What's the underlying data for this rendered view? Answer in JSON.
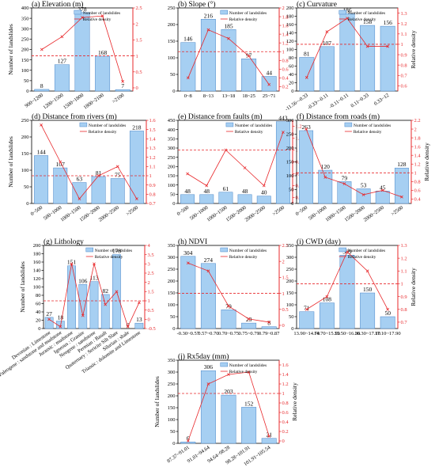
{
  "colors": {
    "bar": "#a6cff2",
    "bar_stroke": "#4a86c8",
    "line": "#e8282b",
    "axis": "#000000"
  },
  "legend": {
    "bars": "Number of landslides",
    "line": "Relative density"
  },
  "axes": {
    "left_label": "Number of landslides",
    "right_label": "Relative density"
  },
  "chart_data": [
    {
      "type": "bar",
      "title": "(a) Elevation (m)",
      "categories": [
        "900~1200",
        "1200~1500",
        "1500~1800",
        "1800~2100",
        ">2100"
      ],
      "series": [
        {
          "name": "Number of landslides",
          "values": [
            8,
            127,
            378,
            168,
            7
          ]
        },
        {
          "name": "Relative density",
          "type": "line",
          "axis": "right",
          "values": [
            1.2,
            1.6,
            2.2,
            2.25,
            0.2
          ]
        }
      ],
      "ylim": [
        0,
        400
      ],
      "yticks": [
        0,
        50,
        100,
        150,
        200,
        250,
        300,
        350,
        400
      ],
      "y2lim": [
        -0.1,
        2.5
      ],
      "y2ticks": [
        0.0,
        0.5,
        1.0,
        1.5,
        2.0,
        2.5
      ],
      "reference": 1.0,
      "show_left_label": true,
      "show_right_label": false
    },
    {
      "type": "bar",
      "title": "(b) Slope (°)",
      "categories": [
        "0~8",
        "8~13",
        "13~18",
        "18~25",
        "25~71"
      ],
      "series": [
        {
          "name": "Number of landslides",
          "values": [
            146,
            216,
            185,
            97,
            44
          ]
        },
        {
          "name": "Relative density",
          "type": "line",
          "axis": "right",
          "values": [
            0.4,
            1.5,
            1.3,
            0.9,
            0.25
          ]
        }
      ],
      "ylim": [
        0,
        250
      ],
      "yticks": [
        0,
        50,
        100,
        150,
        200,
        250
      ],
      "y2lim": [
        0.1,
        2.0
      ],
      "y2ticks": [
        0.2,
        0.4,
        0.6,
        0.8,
        1.0,
        1.2,
        1.4,
        1.6,
        1.8,
        2.0
      ],
      "reference": 1.0,
      "show_left_label": false,
      "show_right_label": false
    },
    {
      "type": "bar",
      "title": "(c) Curvature",
      "categories": [
        "-11.56~-0.33",
        "-0.33~-0.11",
        "-0.11~0.11",
        "0.11~0.33",
        "0.33~12"
      ],
      "series": [
        {
          "name": "Number of landslides",
          "values": [
            81,
            107,
            186,
            158,
            156
          ]
        },
        {
          "name": "Relative density",
          "type": "line",
          "axis": "right",
          "values": [
            0.68,
            1.12,
            1.25,
            0.98,
            0.98
          ]
        }
      ],
      "ylim": [
        0,
        200
      ],
      "yticks": [
        0,
        20,
        40,
        60,
        80,
        100,
        120,
        140,
        160,
        180,
        200
      ],
      "y2lim": [
        0.55,
        1.35
      ],
      "y2ticks": [
        0.6,
        0.7,
        0.8,
        0.9,
        1.0,
        1.1,
        1.2,
        1.3
      ],
      "reference": 1.0,
      "show_left_label": false,
      "show_right_label": true
    },
    {
      "type": "bar",
      "title": "(d) Distance from rivers (m)",
      "categories": [
        "0~500",
        "500~1000",
        "1000~1500",
        "1500~2000",
        "2000~2500",
        ">2500"
      ],
      "series": [
        {
          "name": "Number of landslides",
          "values": [
            144,
            107,
            63,
            81,
            75,
            218
          ]
        },
        {
          "name": "Relative density",
          "type": "line",
          "axis": "right",
          "values": [
            1.55,
            1.15,
            0.75,
            1.0,
            1.1,
            0.75
          ]
        }
      ],
      "ylim": [
        0,
        250
      ],
      "yticks": [
        0,
        50,
        100,
        150,
        200,
        250
      ],
      "y2lim": [
        0.7,
        1.6
      ],
      "y2ticks": [
        0.7,
        0.8,
        0.9,
        1.0,
        1.1,
        1.2,
        1.3,
        1.4,
        1.5,
        1.6
      ],
      "reference": 1.0,
      "show_left_label": true,
      "show_right_label": false
    },
    {
      "type": "bar",
      "title": "(e) Distance from faults (m)",
      "categories": [
        "0~500",
        "500~1000",
        "1000~1500",
        "1500~2000",
        "2000~2500",
        ">2500"
      ],
      "series": [
        {
          "name": "Number of landslides",
          "values": [
            48,
            48,
            61,
            48,
            40,
            443
          ]
        },
        {
          "name": "Relative density",
          "type": "line",
          "axis": "right",
          "values": [
            0.8,
            0.7,
            1.0,
            0.85,
            0.7,
            1.15
          ]
        }
      ],
      "ylim": [
        0,
        450
      ],
      "yticks": [
        0,
        50,
        100,
        150,
        200,
        250,
        300,
        350,
        400,
        450
      ],
      "y2lim": [
        0.55,
        1.25
      ],
      "y2ticks": [
        0.6,
        0.7,
        0.8,
        0.9,
        1.0,
        1.1,
        1.2
      ],
      "reference": 1.0,
      "show_left_label": false,
      "show_right_label": false
    },
    {
      "type": "bar",
      "title": "(f) Distance from roads (m)",
      "categories": [
        "0~500",
        "500~1000",
        "1000~1500",
        "1500~2000",
        "2000~2500",
        ">2500"
      ],
      "series": [
        {
          "name": "Number of landslides",
          "values": [
            263,
            120,
            79,
            53,
            45,
            128
          ]
        },
        {
          "name": "Relative density",
          "type": "line",
          "axis": "right",
          "values": [
            2.0,
            0.9,
            0.75,
            0.5,
            0.6,
            0.45
          ]
        }
      ],
      "ylim": [
        0,
        300
      ],
      "yticks": [
        0,
        50,
        100,
        150,
        200,
        250,
        300
      ],
      "y2lim": [
        0.3,
        2.2
      ],
      "y2ticks": [
        0.4,
        0.6,
        0.8,
        1.0,
        1.2,
        1.4,
        1.6,
        1.8,
        2.0,
        2.2
      ],
      "reference": 1.0,
      "show_left_label": false,
      "show_right_label": true
    },
    {
      "type": "bar",
      "title": "(g) Lithology",
      "categories": [
        "Devonian : Limestone",
        "Paleogene : sandstone and mudstone",
        "Jurassic : mudstone",
        "Igneous : Granite",
        "Neogene : sandstone",
        "Permian : Basalt",
        "Quaternary : Sericite Silt Slate",
        "Silurian : shale",
        "Triassic : dolomite and Limestone"
      ],
      "series": [
        {
          "name": "Number of landslides",
          "values": [
            27,
            18,
            151,
            106,
            113,
            82,
            178,
            0,
            13
          ]
        },
        {
          "name": "Relative density",
          "type": "line",
          "axis": "right",
          "values": [
            0.0,
            -0.4,
            3.0,
            0.2,
            3.0,
            0.8,
            1.5,
            -0.4,
            0.9
          ]
        }
      ],
      "ylim": [
        0,
        200
      ],
      "yticks": [
        0,
        20,
        40,
        60,
        80,
        100,
        120,
        140,
        160,
        180,
        200
      ],
      "y2lim": [
        -0.5,
        4.0
      ],
      "y2ticks": [
        -0.5,
        0.0,
        0.5,
        1.0,
        1.5,
        2.0,
        2.5,
        3.0,
        3.5,
        4.0
      ],
      "reference": 1.0,
      "show_left_label": true,
      "show_right_label": false
    },
    {
      "type": "bar",
      "title": "(h) NDVI",
      "categories": [
        "-0.30~0.57",
        "0.57~0.70",
        "0.70~0.75",
        "0.75~0.79",
        "0.79~0.87"
      ],
      "series": [
        {
          "name": "Number of landslides",
          "values": [
            304,
            274,
            79,
            23,
            8
          ]
        },
        {
          "name": "Relative density",
          "type": "line",
          "axis": "right",
          "values": [
            1.95,
            1.7,
            0.6,
            0.2,
            0.1
          ]
        }
      ],
      "ylim": [
        0,
        350
      ],
      "yticks": [
        0,
        50,
        100,
        150,
        200,
        250,
        300,
        350
      ],
      "y2lim": [
        -0.1,
        2.5
      ],
      "y2ticks": [
        0.0,
        0.5,
        1.0,
        1.5,
        2.0,
        2.5
      ],
      "reference": 1.0,
      "show_left_label": false,
      "show_right_label": false
    },
    {
      "type": "bar",
      "title": "(i) CWD (day)",
      "categories": [
        "13.90~14.70",
        "14.70~15.50",
        "15.50~16.30",
        "16.30~17.10",
        "17.10~17.90"
      ],
      "series": [
        {
          "name": "Number of landslides",
          "values": [
            71,
            108,
            309,
            150,
            50
          ]
        },
        {
          "name": "Relative density",
          "type": "line",
          "axis": "right",
          "values": [
            0.8,
            0.9,
            1.25,
            1.1,
            0.8
          ]
        }
      ],
      "ylim": [
        0,
        350
      ],
      "yticks": [
        0,
        50,
        100,
        150,
        200,
        250,
        300,
        350
      ],
      "y2lim": [
        0.65,
        1.3
      ],
      "y2ticks": [
        0.7,
        0.8,
        0.9,
        1.0,
        1.1,
        1.2,
        1.3
      ],
      "reference": 1.0,
      "show_left_label": false,
      "show_right_label": true
    },
    {
      "type": "bar",
      "title": "(j) Rx5day (mm)",
      "categories": [
        "87.37~91.01",
        "91.01~94.64",
        "94.64~98.28",
        "98.28~101.91",
        "101.91~105.54"
      ],
      "series": [
        {
          "name": "Number of landslides",
          "values": [
            6,
            306,
            203,
            152,
            21
          ]
        },
        {
          "name": "Relative density",
          "type": "line",
          "axis": "right",
          "values": [
            0.0,
            1.2,
            1.4,
            1.45,
            0.1
          ]
        }
      ],
      "ylim": [
        0,
        350
      ],
      "yticks": [
        0,
        50,
        100,
        150,
        200,
        250,
        300,
        350
      ],
      "y2lim": [
        -0.05,
        1.7
      ],
      "y2ticks": [
        0.0,
        0.2,
        0.4,
        0.6,
        0.8,
        1.0,
        1.2,
        1.4,
        1.6
      ],
      "reference": 1.0,
      "show_left_label": true,
      "show_right_label": true
    }
  ]
}
